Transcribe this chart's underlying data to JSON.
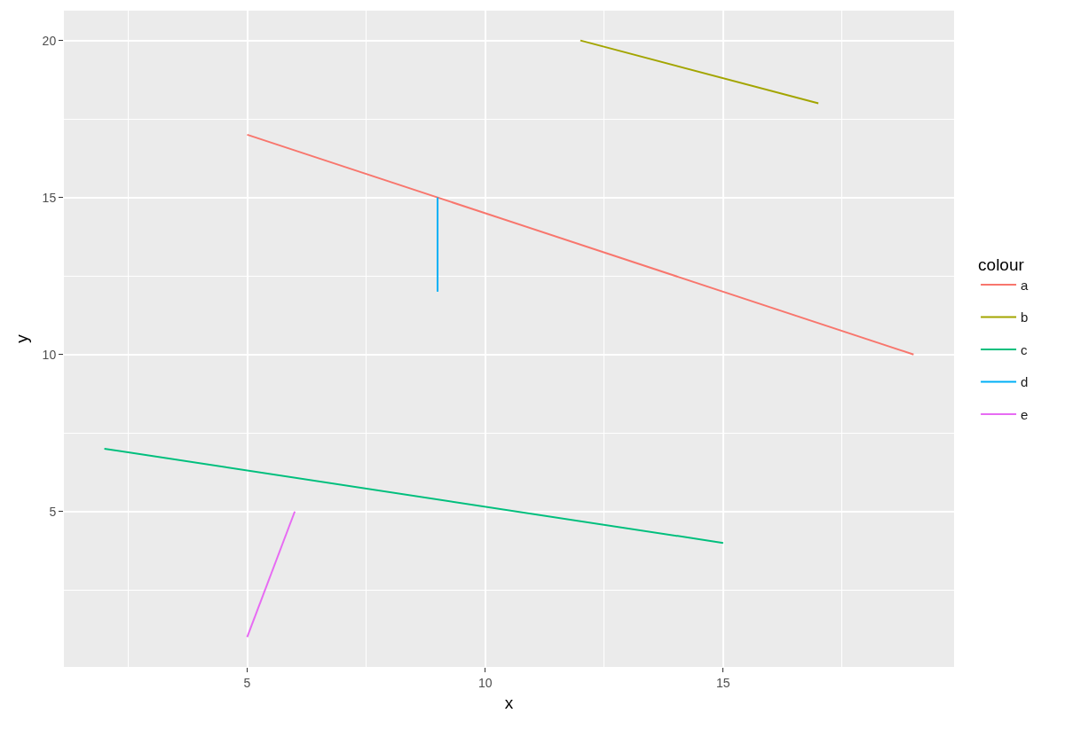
{
  "chart_data": {
    "type": "line",
    "xlabel": "x",
    "ylabel": "y",
    "legend_title": "colour",
    "series": [
      {
        "name": "a",
        "color": "#f8766d",
        "x": [
          5,
          19
        ],
        "values": [
          17,
          10
        ]
      },
      {
        "name": "b",
        "color": "#a3a500",
        "x": [
          12,
          17
        ],
        "values": [
          20,
          18
        ]
      },
      {
        "name": "c",
        "color": "#00bf7d",
        "x": [
          2,
          15
        ],
        "values": [
          7,
          4
        ]
      },
      {
        "name": "d",
        "color": "#00b0f6",
        "x": [
          9,
          9
        ],
        "values": [
          15,
          12
        ]
      },
      {
        "name": "e",
        "color": "#e76bf3",
        "x": [
          5,
          6
        ],
        "values": [
          1,
          5
        ]
      }
    ],
    "xlim": [
      1.15,
      19.85
    ],
    "ylim": [
      0.05,
      20.95
    ],
    "xticks": [
      {
        "value": 2.5,
        "label": null
      },
      5,
      {
        "value": 7.5,
        "label": null
      },
      10,
      {
        "value": 12.5,
        "label": null
      },
      15,
      {
        "value": 17.5,
        "label": null
      }
    ],
    "yticks": [
      {
        "value": 2.5,
        "label": null
      },
      5,
      {
        "value": 7.5,
        "label": null
      },
      10,
      {
        "value": 12.5,
        "label": null
      },
      15,
      {
        "value": 17.5,
        "label": null
      },
      20
    ],
    "grid": true,
    "legend": "right"
  }
}
